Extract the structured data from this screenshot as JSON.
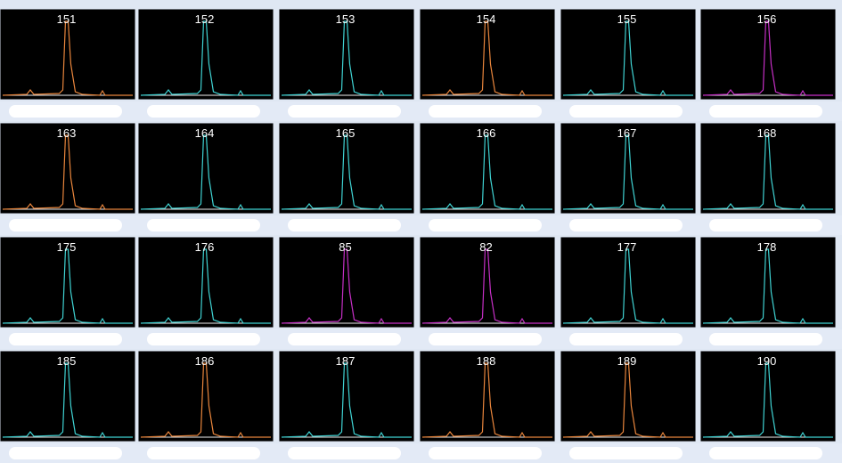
{
  "panels": [
    {
      "label": "151",
      "color": "#e8853c"
    },
    {
      "label": "152",
      "color": "#3fd2d2"
    },
    {
      "label": "153",
      "color": "#3fd2d2"
    },
    {
      "label": "154",
      "color": "#e8853c"
    },
    {
      "label": "155",
      "color": "#3fd2d2"
    },
    {
      "label": "156",
      "color": "#c52fc5"
    },
    {
      "label": "163",
      "color": "#e8853c"
    },
    {
      "label": "164",
      "color": "#3fd2d2"
    },
    {
      "label": "165",
      "color": "#3fd2d2"
    },
    {
      "label": "166",
      "color": "#3fd2d2"
    },
    {
      "label": "167",
      "color": "#3fd2d2"
    },
    {
      "label": "168",
      "color": "#3fd2d2"
    },
    {
      "label": "175",
      "color": "#3fd2d2"
    },
    {
      "label": "176",
      "color": "#3fd2d2"
    },
    {
      "label": "85",
      "color": "#c52fc5"
    },
    {
      "label": "82",
      "color": "#c52fc5"
    },
    {
      "label": "177",
      "color": "#3fd2d2"
    },
    {
      "label": "178",
      "color": "#3fd2d2"
    },
    {
      "label": "185",
      "color": "#3fd2d2"
    },
    {
      "label": "186",
      "color": "#e8853c"
    },
    {
      "label": "187",
      "color": "#3fd2d2"
    },
    {
      "label": "188",
      "color": "#e8853c"
    },
    {
      "label": "189",
      "color": "#e8853c"
    },
    {
      "label": "190",
      "color": "#3fd2d2"
    }
  ]
}
